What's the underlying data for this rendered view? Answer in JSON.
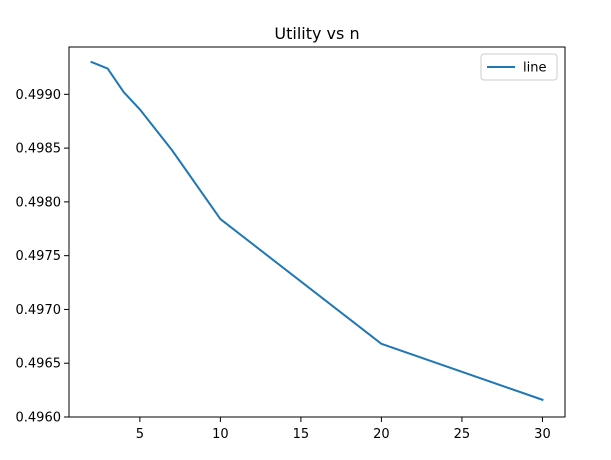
{
  "chart_data": {
    "type": "line",
    "title": "Utility vs n",
    "xlabel": "",
    "ylabel": "",
    "xlim": [
      0.6,
      31.4
    ],
    "ylim": [
      0.496,
      0.49944
    ],
    "xticks": [
      5,
      10,
      15,
      20,
      25,
      30
    ],
    "xtick_labels": [
      "5",
      "10",
      "15",
      "20",
      "25",
      "30"
    ],
    "yticks": [
      0.496,
      0.4965,
      0.497,
      0.4975,
      0.498,
      0.4985,
      0.499
    ],
    "ytick_labels": [
      "0.4960",
      "0.4965",
      "0.4970",
      "0.4975",
      "0.4980",
      "0.4985",
      "0.4990"
    ],
    "grid": false,
    "legend_position": "top-right",
    "series": [
      {
        "name": "line",
        "color": "#1f77b4",
        "x": [
          2,
          3,
          4,
          5,
          7,
          10,
          20,
          30
        ],
        "y": [
          0.4993,
          0.49924,
          0.49902,
          0.49886,
          0.49848,
          0.49784,
          0.49668,
          0.49616
        ]
      }
    ]
  }
}
